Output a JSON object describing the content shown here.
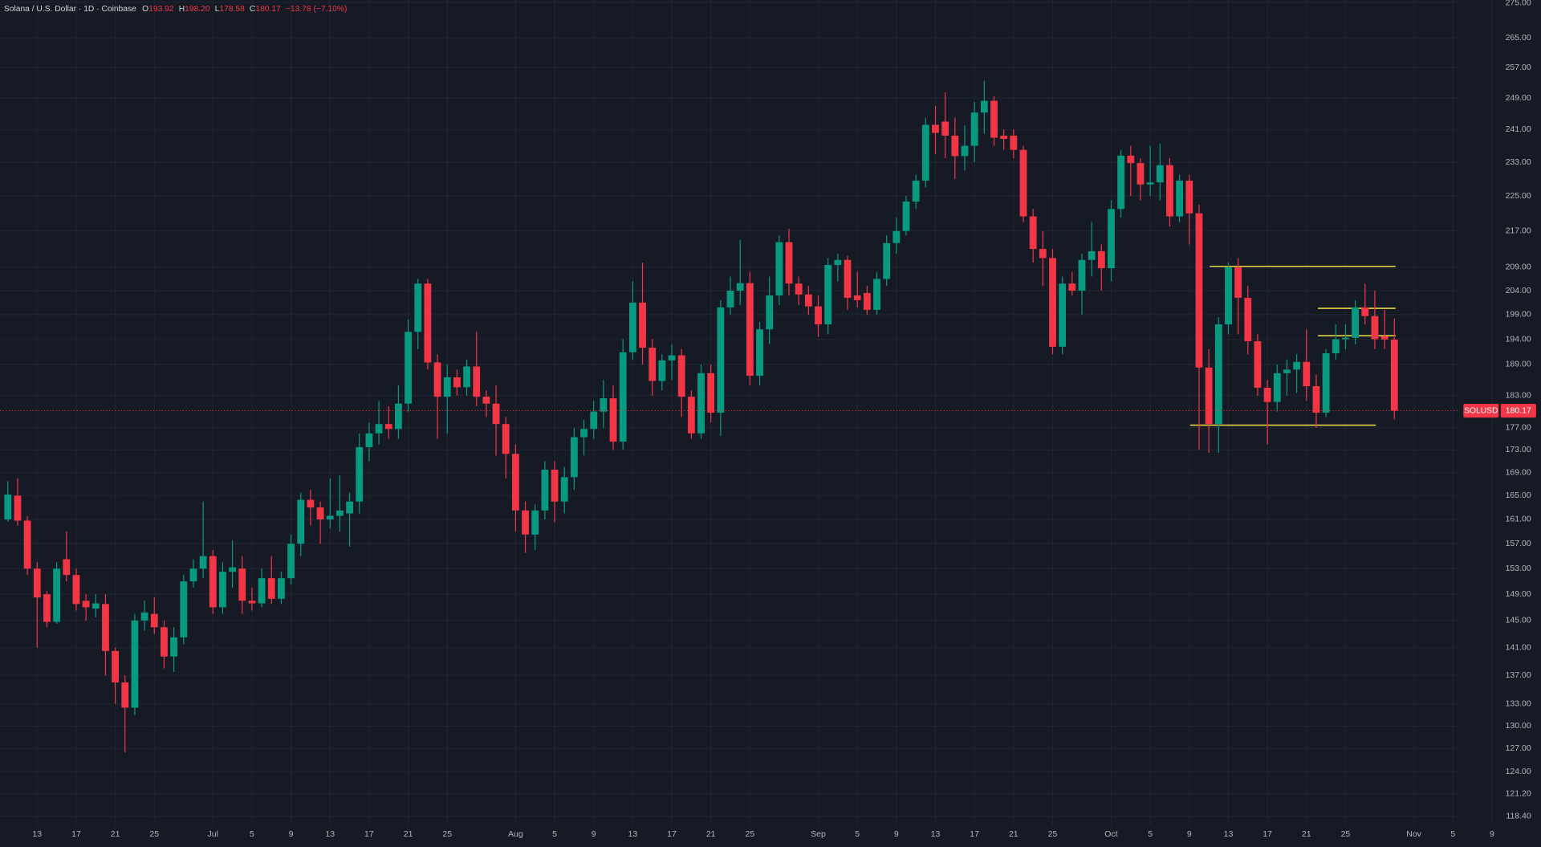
{
  "header": {
    "title": "Solana / U.S. Dollar · 1D · Coinbase",
    "ohlc": [
      {
        "label": "O",
        "value": "193.92"
      },
      {
        "label": "H",
        "value": "198.20"
      },
      {
        "label": "L",
        "value": "178.58"
      },
      {
        "label": "C",
        "value": "180.17"
      }
    ],
    "change": "−13.78 (−7.10%)"
  },
  "chart_data": {
    "type": "candlestick",
    "symbol": "SOLUSD",
    "up_color": "#089981",
    "down_color": "#f23645",
    "grid": true,
    "log_scale": true,
    "categories": [
      null,
      null,
      null,
      "13",
      null,
      null,
      null,
      "17",
      null,
      null,
      null,
      "21",
      null,
      null,
      null,
      "25",
      null,
      null,
      null,
      null,
      null,
      "Jul",
      null,
      null,
      null,
      "5",
      null,
      null,
      null,
      "9",
      null,
      null,
      null,
      "13",
      null,
      null,
      null,
      "17",
      null,
      null,
      null,
      "21",
      null,
      null,
      null,
      "25",
      null,
      null,
      null,
      null,
      null,
      null,
      "Aug",
      null,
      null,
      null,
      "5",
      null,
      null,
      null,
      "9",
      null,
      null,
      null,
      "13",
      null,
      null,
      null,
      "17",
      null,
      null,
      null,
      "21",
      null,
      null,
      null,
      "25",
      null,
      null,
      null,
      null,
      null,
      null,
      "Sep",
      null,
      null,
      null,
      "5",
      null,
      null,
      null,
      "9",
      null,
      null,
      null,
      "13",
      null,
      null,
      null,
      "17",
      null,
      null,
      null,
      "21",
      null,
      null,
      null,
      "25",
      null,
      null,
      null,
      null,
      null,
      "Oct",
      null,
      null,
      null,
      "5",
      null,
      null,
      null,
      "9",
      null,
      null,
      null,
      "13",
      null,
      null,
      null,
      "17",
      null,
      null,
      null,
      "21",
      null,
      null,
      null,
      "25",
      null,
      null,
      null,
      null,
      null,
      null,
      "Nov",
      null,
      null,
      null,
      "5",
      null,
      null,
      null,
      "9"
    ],
    "open": [
      161,
      165,
      160.8,
      153,
      149,
      144.8,
      154.5,
      152,
      148,
      146.8,
      147.5,
      140.5,
      136,
      132.5,
      145,
      146,
      144,
      139.7,
      142.5,
      151,
      153,
      155,
      147,
      152.5,
      153,
      148,
      147.6,
      151.5,
      148.3,
      151.5,
      157,
      164.3,
      163,
      161,
      161.6,
      162,
      164,
      173.5,
      176,
      177.7,
      176.8,
      181.5,
      195.5,
      205.5,
      189.4,
      182.8,
      186.5,
      184.6,
      188.6,
      182.8,
      181.5,
      177.7,
      172.3,
      162.5,
      158.5,
      162.5,
      169.5,
      164,
      168.2,
      175.3,
      176.8,
      180,
      182.5,
      174.5,
      191.4,
      201.5,
      192.3,
      185.8,
      189.8,
      190.8,
      182.8,
      176,
      187.3,
      179.8,
      200.5,
      204,
      205.6,
      186.8,
      196,
      203,
      214.5,
      205.5,
      203.2,
      200.7,
      197,
      209.5,
      210.6,
      203,
      203.5,
      200,
      206.5,
      214.3,
      217,
      223.7,
      228.6,
      242.2,
      243,
      239.5,
      234.5,
      237,
      245.3,
      248.3,
      239.5,
      239.5,
      236,
      220.3,
      213,
      211,
      192.5,
      205.5,
      204,
      210.6,
      212.5,
      208.8,
      222,
      234.6,
      232.8,
      227.7,
      228.2,
      232.3,
      220.3,
      228.6,
      221,
      188.4,
      177.7,
      197,
      209,
      202.5,
      193.6,
      184.5,
      181.8,
      187.3,
      188,
      189.5,
      184.8,
      179.8,
      191.2,
      194,
      194.3,
      200.5,
      198.7,
      194.6,
      193.92,
      null,
      null,
      null,
      null,
      null,
      null,
      null,
      null,
      null,
      null
    ],
    "high": [
      167.5,
      168,
      161.5,
      154,
      149.5,
      154,
      159,
      153,
      149,
      149,
      149,
      141,
      137,
      146,
      148,
      148.5,
      145,
      144,
      152,
      154.5,
      164,
      156,
      154,
      157.5,
      155,
      150,
      153,
      155,
      152.5,
      158.5,
      165.5,
      166,
      164,
      168,
      168.5,
      165.5,
      176,
      178,
      182,
      181,
      185,
      198,
      206.5,
      206.5,
      191,
      189,
      188,
      190,
      195.5,
      184,
      185,
      179,
      174,
      164,
      163.5,
      171,
      171,
      170,
      177,
      178.5,
      182,
      186,
      185,
      194,
      206,
      210,
      194,
      191,
      193,
      192,
      184,
      189,
      189,
      202,
      207,
      215,
      208,
      197.5,
      207,
      216,
      217.5,
      207,
      205,
      203,
      211,
      212,
      211.5,
      208,
      205,
      208,
      216,
      220,
      225,
      230,
      244,
      247,
      250.5,
      244,
      242,
      248,
      253.5,
      249.5,
      241,
      241,
      237,
      222,
      217,
      213,
      207,
      208,
      212,
      219,
      214,
      224,
      236,
      237,
      234,
      237,
      237.5,
      234,
      230,
      230,
      223,
      192,
      198.5,
      210,
      211,
      205,
      195,
      186,
      189,
      190,
      191,
      196,
      187,
      192,
      197,
      197,
      202,
      205.5,
      204,
      200,
      198.2,
      null,
      null,
      null,
      null,
      null,
      null,
      null,
      null,
      null,
      null
    ],
    "low": [
      160.6,
      160,
      152,
      141,
      144,
      144.5,
      151,
      146.5,
      145,
      145.5,
      137,
      133,
      126.5,
      131.5,
      143.5,
      143,
      138,
      137.5,
      141.5,
      150,
      151.5,
      146,
      146,
      150,
      146,
      146.5,
      147,
      147.5,
      147.5,
      150.5,
      155,
      160,
      157,
      159.5,
      159,
      156.5,
      162,
      171,
      174,
      175,
      175,
      180,
      192,
      188,
      175,
      176,
      183,
      183,
      181,
      179,
      172,
      168,
      159,
      155.5,
      156,
      161,
      160.5,
      162,
      166,
      172,
      175,
      177,
      173,
      173,
      190,
      189,
      183,
      184,
      186,
      179,
      175,
      175,
      178,
      175.5,
      199,
      201,
      185,
      185,
      193,
      201,
      203,
      201,
      199,
      194.5,
      195,
      206,
      200,
      200.5,
      199,
      199,
      205,
      212,
      216,
      222,
      227,
      235,
      234,
      229,
      231,
      233,
      240,
      237,
      236,
      234,
      219,
      210,
      205,
      191,
      191,
      203,
      199,
      207,
      204,
      206,
      220,
      225,
      224,
      225,
      224,
      218,
      219,
      214,
      173,
      172.5,
      172.5,
      195,
      195,
      191,
      183,
      174,
      180,
      183,
      183.5,
      182,
      177,
      179,
      190,
      192,
      193,
      197,
      192,
      192,
      178.58,
      null,
      null,
      null,
      null,
      null,
      null,
      null,
      null,
      null,
      null
    ],
    "close": [
      165.2,
      160.8,
      153,
      148.5,
      144.8,
      153,
      152,
      147.5,
      147,
      147.6,
      140.5,
      136,
      132.5,
      145,
      146.2,
      144,
      139.7,
      142.5,
      151,
      153,
      155,
      147,
      152.5,
      153.2,
      148,
      147.6,
      151.5,
      148.3,
      151.5,
      157,
      164.3,
      163,
      161,
      161.6,
      162.5,
      164,
      173.5,
      176,
      177.7,
      176.8,
      181.5,
      195.5,
      205.5,
      189.4,
      182.8,
      186.5,
      184.6,
      188.6,
      182.8,
      181.5,
      177.7,
      172.3,
      162.5,
      158.5,
      162.5,
      169.5,
      164,
      168.2,
      175.3,
      176.8,
      180,
      182.5,
      174.5,
      191.4,
      201.5,
      192.3,
      185.8,
      189.8,
      190.8,
      182.8,
      176,
      187.3,
      179.8,
      200.5,
      204,
      205.6,
      186.8,
      196,
      203,
      214.5,
      205.5,
      203.2,
      200.7,
      197,
      209.5,
      210.6,
      202.5,
      202,
      200,
      206.5,
      214.3,
      217,
      223.7,
      228.6,
      242.2,
      240.2,
      239.5,
      234.5,
      237,
      245.3,
      248.3,
      239,
      238.7,
      236,
      220.3,
      213,
      211,
      192.5,
      205.5,
      204,
      210.6,
      212.5,
      208.8,
      222,
      234.6,
      232.8,
      227.7,
      228.2,
      232.3,
      220.3,
      228.6,
      221,
      188.4,
      177.7,
      197,
      209,
      202.5,
      193.6,
      184.5,
      181.8,
      187.3,
      188,
      189.5,
      184.8,
      179.8,
      191.2,
      194,
      194.3,
      200.5,
      198.7,
      194,
      193.95,
      180.17,
      null,
      null,
      null,
      null,
      null,
      null,
      null,
      null,
      null,
      null
    ],
    "ylim": [
      117.3,
      275.6
    ],
    "yticks": [
      {
        "value": 275,
        "label": "275.00"
      },
      {
        "value": 265,
        "label": "265.00"
      },
      {
        "value": 257,
        "label": "257.00"
      },
      {
        "value": 249,
        "label": "249.00"
      },
      {
        "value": 241,
        "label": "241.00"
      },
      {
        "value": 233,
        "label": "233.00"
      },
      {
        "value": 225,
        "label": "225.00"
      },
      {
        "value": 217,
        "label": "217.00"
      },
      {
        "value": 209,
        "label": "209.00"
      },
      {
        "value": 204,
        "label": "204.00"
      },
      {
        "value": 199,
        "label": "199.00"
      },
      {
        "value": 194,
        "label": "194.00"
      },
      {
        "value": 189,
        "label": "189.00"
      },
      {
        "value": 183,
        "label": "183.00"
      },
      {
        "value": 177,
        "label": "177.00"
      },
      {
        "value": 173,
        "label": "173.00"
      },
      {
        "value": 169,
        "label": "169.00"
      },
      {
        "value": 165,
        "label": "165.00"
      },
      {
        "value": 161,
        "label": "161.00"
      },
      {
        "value": 157,
        "label": "157.00"
      },
      {
        "value": 153,
        "label": "153.00"
      },
      {
        "value": 149,
        "label": "149.00"
      },
      {
        "value": 145,
        "label": "145.00"
      },
      {
        "value": 141,
        "label": "141.00"
      },
      {
        "value": 137,
        "label": "137.00"
      },
      {
        "value": 133,
        "label": "133.00"
      },
      {
        "value": 130,
        "label": "130.00"
      },
      {
        "value": 127,
        "label": "127.00"
      },
      {
        "value": 124,
        "label": "124.00"
      },
      {
        "value": 121.2,
        "label": "121.20"
      },
      {
        "value": 118.4,
        "label": "118.40"
      }
    ],
    "levels": {
      "color": "#e6d442",
      "values": [
        209.2,
        200.3,
        194.7,
        177.5
      ]
    }
  }
}
